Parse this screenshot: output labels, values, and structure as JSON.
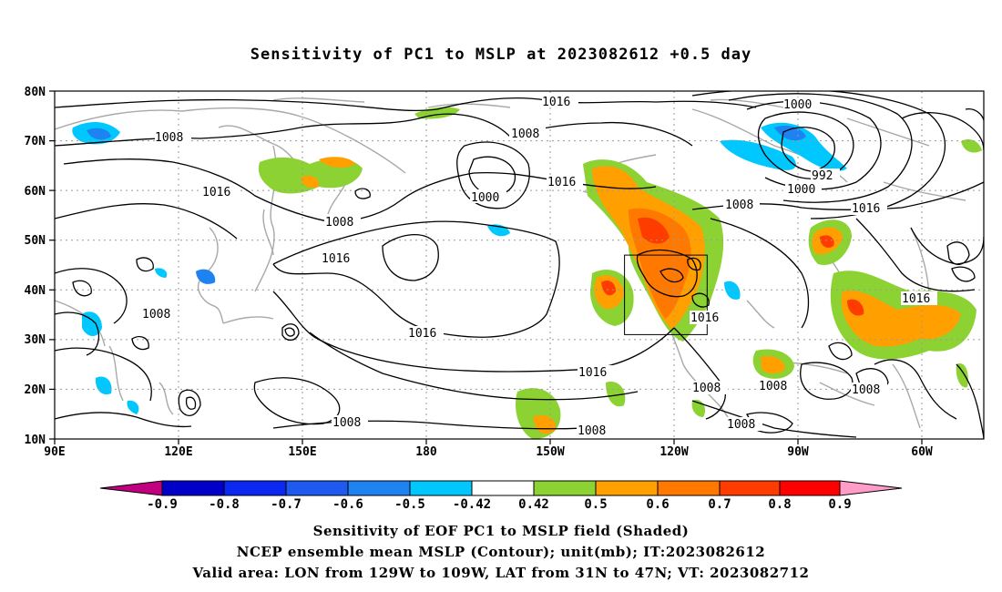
{
  "title": "Sensitivity of PC1 to MSLP at 2023082612 +0.5 day",
  "map": {
    "lat_labels": [
      "80N",
      "70N",
      "60N",
      "50N",
      "40N",
      "30N",
      "20N",
      "10N"
    ],
    "lon_labels": [
      "90E",
      "120E",
      "150E",
      "180",
      "150W",
      "120W",
      "90W",
      "60W"
    ],
    "valid_box_color": "#000000",
    "isobar_labels": [
      {
        "text": "1016"
      },
      {
        "text": "1008"
      },
      {
        "text": "1000"
      },
      {
        "text": "992"
      },
      {
        "text": "1000"
      },
      {
        "text": "1016"
      },
      {
        "text": "1008"
      },
      {
        "text": "1016"
      },
      {
        "text": "1016"
      },
      {
        "text": "1008"
      },
      {
        "text": "1008"
      },
      {
        "text": "1016"
      },
      {
        "text": "1016"
      },
      {
        "text": "1008"
      },
      {
        "text": "1000"
      },
      {
        "text": "1016"
      },
      {
        "text": "1008"
      },
      {
        "text": "1016"
      },
      {
        "text": "1016"
      },
      {
        "text": "1008"
      },
      {
        "text": "1008"
      },
      {
        "text": "1008"
      },
      {
        "text": "1008"
      },
      {
        "text": "1008"
      }
    ]
  },
  "colorbar": {
    "labels": [
      "-0.9",
      "-0.8",
      "-0.7",
      "-0.6",
      "-0.5",
      "-0.42",
      "0.42",
      "0.5",
      "0.6",
      "0.7",
      "0.8",
      "0.9"
    ],
    "colors": [
      "#c0007f",
      "#0000c8",
      "#0a28f0",
      "#1e5af0",
      "#1e82f0",
      "#00c8ff",
      "#ffffff",
      "#8cd232",
      "#ffa000",
      "#ff7800",
      "#ff3c00",
      "#ff0000",
      "#ff9cc8"
    ]
  },
  "captions": {
    "line1": "Sensitivity of EOF PC1 to MSLP field (Shaded)",
    "line2": "NCEP ensemble mean MSLP (Contour); unit(mb); IT:2023082612",
    "line3": "Valid area: LON from 129W to 109W, LAT from 31N to 47N; VT: 2023082712"
  }
}
